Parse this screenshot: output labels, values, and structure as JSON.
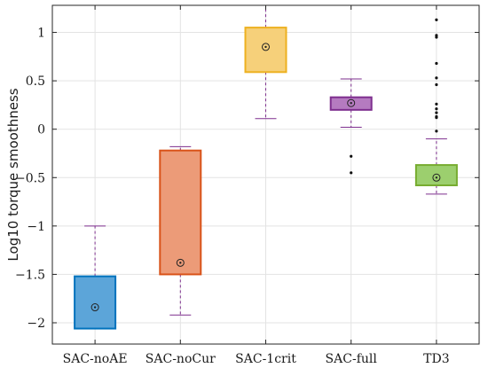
{
  "chart_data": {
    "type": "box",
    "ylabel": "Log10 torque smoothness",
    "xlabel": "",
    "title": "",
    "ylim": [
      -2.22,
      1.28
    ],
    "grid": true,
    "y_ticks": [
      {
        "value": 1,
        "label": "1"
      },
      {
        "value": 0.5,
        "label": "0.5"
      },
      {
        "value": 0,
        "label": "0"
      },
      {
        "value": -0.5,
        "label": "−0.5"
      },
      {
        "value": -1,
        "label": "−1"
      },
      {
        "value": -1.5,
        "label": "−1.5"
      },
      {
        "value": -2,
        "label": "−2"
      }
    ],
    "categories": [
      "SAC-noAE",
      "SAC-noCur",
      "SAC-1crit",
      "SAC-full",
      "TD3"
    ],
    "whisker_color": "#7e2f8e",
    "boxes": [
      {
        "q1": -2.06,
        "q3": -1.52,
        "median": -1.84,
        "whisker_low": -2.06,
        "whisker_high": -1.0,
        "outliers": [],
        "fill": "#5ca5d9",
        "edge": "#0072bd"
      },
      {
        "q1": -1.5,
        "q3": -0.22,
        "median": -1.38,
        "whisker_low": -1.92,
        "whisker_high": -0.18,
        "outliers": [],
        "fill": "#ec9b78",
        "edge": "#d95319"
      },
      {
        "q1": 0.59,
        "q3": 1.05,
        "median": 0.85,
        "whisker_low": 0.11,
        "whisker_high": 1.28,
        "outliers": [],
        "fill": "#f6d07a",
        "edge": "#edb120"
      },
      {
        "q1": 0.2,
        "q3": 0.33,
        "median": 0.27,
        "whisker_low": 0.02,
        "whisker_high": 0.52,
        "outliers": [
          -0.28,
          -0.45
        ],
        "fill": "#b57bc0",
        "edge": "#7e2f8e"
      },
      {
        "q1": -0.58,
        "q3": -0.37,
        "median": -0.5,
        "whisker_low": -0.67,
        "whisker_high": -0.1,
        "outliers": [
          1.13,
          0.97,
          0.95,
          0.68,
          0.53,
          0.46,
          0.26,
          0.21,
          0.17,
          0.13,
          0.12,
          -0.02
        ],
        "fill": "#9ccf6e",
        "edge": "#77ac30"
      }
    ]
  }
}
